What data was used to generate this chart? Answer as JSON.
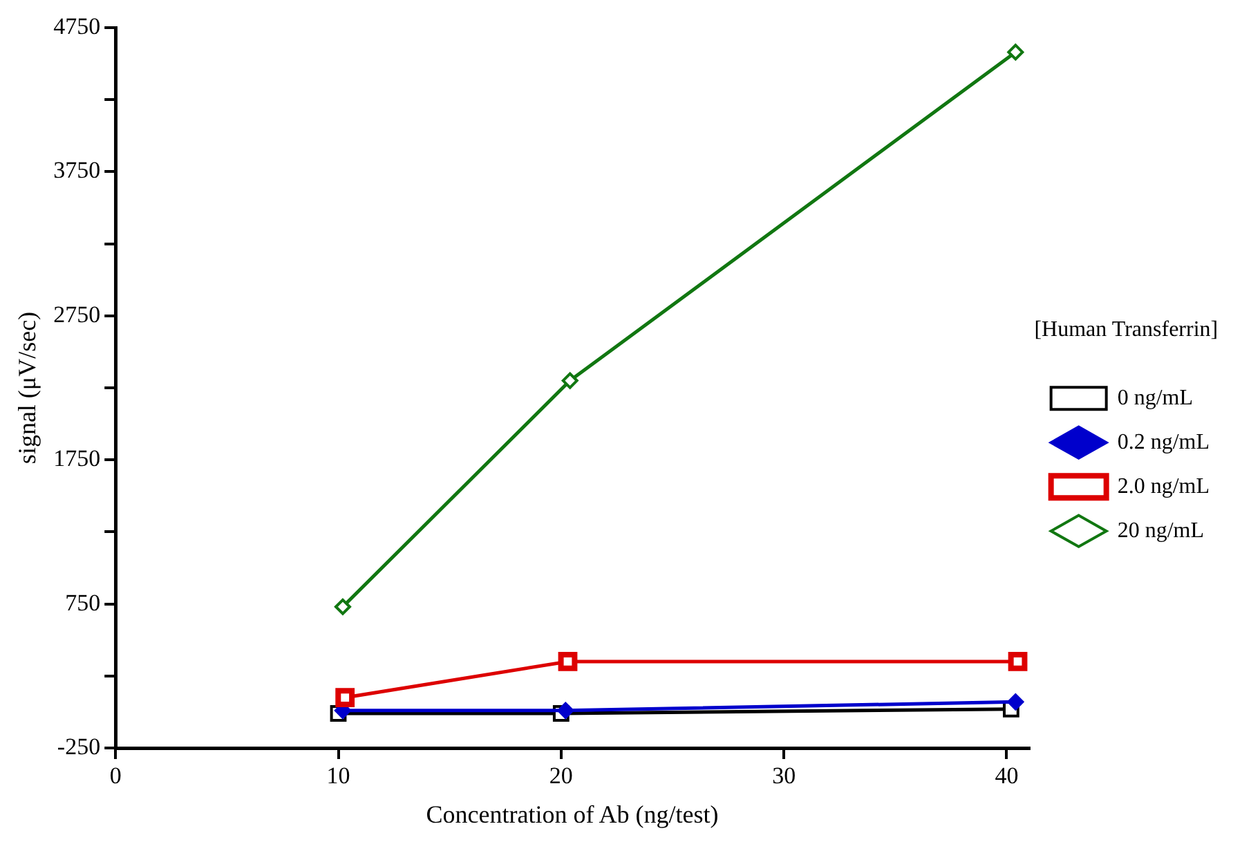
{
  "chart_data": {
    "type": "line",
    "xlabel": "Concentration of Ab (ng/test)",
    "ylabel": "signal (μV/sec)",
    "legend_title": "[Human Transferrin]",
    "xlim": [
      0,
      41
    ],
    "xticks": [
      0,
      10,
      20,
      30,
      40
    ],
    "ylim": [
      -250,
      4750
    ],
    "yticks": [
      -250,
      {
        "value": 250,
        "label": null
      },
      750,
      {
        "value": 1250,
        "label": null
      },
      1750,
      {
        "value": 2250,
        "label": null
      },
      2750,
      {
        "value": 3250,
        "label": null
      },
      3750,
      {
        "value": 4250,
        "label": null
      },
      4750
    ],
    "grid": false,
    "legend": "right",
    "line_style": "solid",
    "series": [
      {
        "name": "0 ng/mL",
        "color": "#000000",
        "marker": "square",
        "x": [
          10,
          20,
          40.2
        ],
        "values": [
          -10,
          -10,
          20
        ]
      },
      {
        "name": "0.2 ng/mL",
        "color": "#0000cc",
        "marker": "diamond",
        "x": [
          10.2,
          20.2,
          40.4
        ],
        "values": [
          10,
          10,
          70
        ]
      },
      {
        "name": "2.0 ng/mL",
        "color": "#dd0000",
        "marker": "square",
        "x": [
          10.3,
          20.3,
          40.5
        ],
        "values": [
          100,
          350,
          350
        ]
      },
      {
        "name": "20 ng/mL",
        "color": "#117711",
        "marker": "diamond",
        "x": [
          10.2,
          20.4,
          40.4
        ],
        "values": [
          730,
          2300,
          4580
        ]
      }
    ]
  }
}
